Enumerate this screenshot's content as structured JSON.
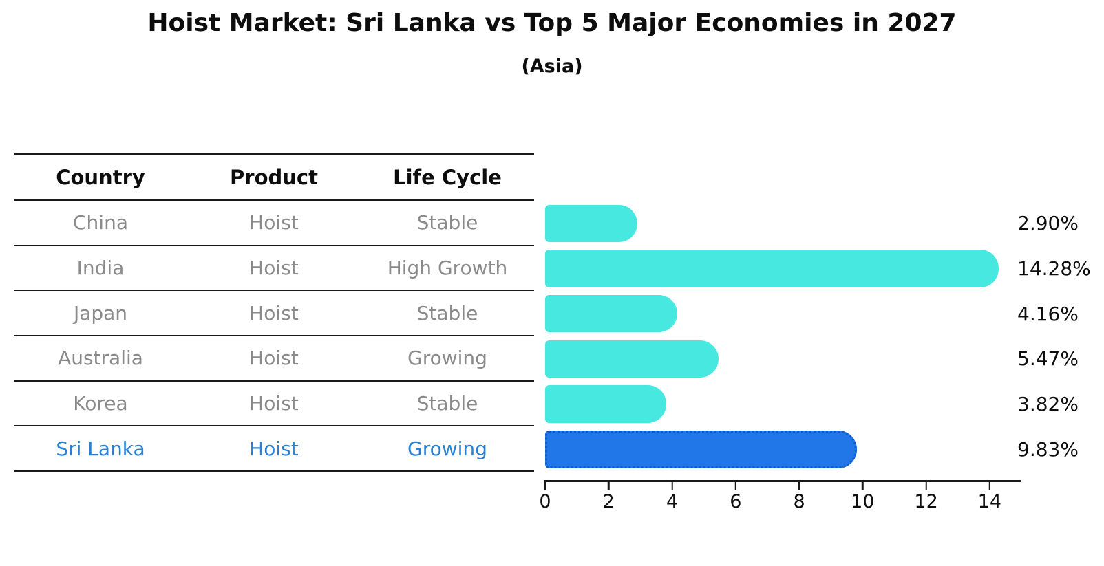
{
  "title": "Hoist Market: Sri Lanka vs Top 5 Major Economies in 2027",
  "subtitle": "(Asia)",
  "table": {
    "headers": [
      "Country",
      "Product",
      "Life Cycle"
    ],
    "rows": [
      {
        "country": "China",
        "product": "Hoist",
        "life_cycle": "Stable",
        "highlighted": false
      },
      {
        "country": "India",
        "product": "Hoist",
        "life_cycle": "High Growth",
        "highlighted": false
      },
      {
        "country": "Japan",
        "product": "Hoist",
        "life_cycle": "Stable",
        "highlighted": false
      },
      {
        "country": "Australia",
        "product": "Hoist",
        "life_cycle": "Growing",
        "highlighted": false
      },
      {
        "country": "Korea",
        "product": "Hoist",
        "life_cycle": "Stable",
        "highlighted": false
      },
      {
        "country": "Sri Lanka",
        "product": "Hoist",
        "life_cycle": "Growing",
        "highlighted": true
      }
    ]
  },
  "chart_data": {
    "type": "bar",
    "orientation": "horizontal",
    "title": "Hoist Market: Sri Lanka vs Top 5 Major Economies in 2027",
    "subtitle": "(Asia)",
    "categories": [
      "China",
      "India",
      "Japan",
      "Australia",
      "Korea",
      "Sri Lanka"
    ],
    "values": [
      2.9,
      14.28,
      4.16,
      5.47,
      3.82,
      9.83
    ],
    "value_labels": [
      "2.90%",
      "14.28%",
      "4.16%",
      "5.47%",
      "3.82%",
      "9.83%"
    ],
    "xlim": [
      0,
      15
    ],
    "xticks": [
      "0",
      "2",
      "4",
      "6",
      "8",
      "10",
      "12",
      "14"
    ],
    "grid": false,
    "legend": false,
    "bar_color": "#46e8e0",
    "highlight_index": 5,
    "highlight_bar_color": "#2176e8",
    "highlight_bar_border_color": "#1059c9",
    "highlight_text_color": "#2a80d5"
  },
  "colors": {
    "background": "#ffffff",
    "text": "#0d0d0d",
    "muted_text": "#8a8a8a",
    "line": "#1a1a1a"
  }
}
